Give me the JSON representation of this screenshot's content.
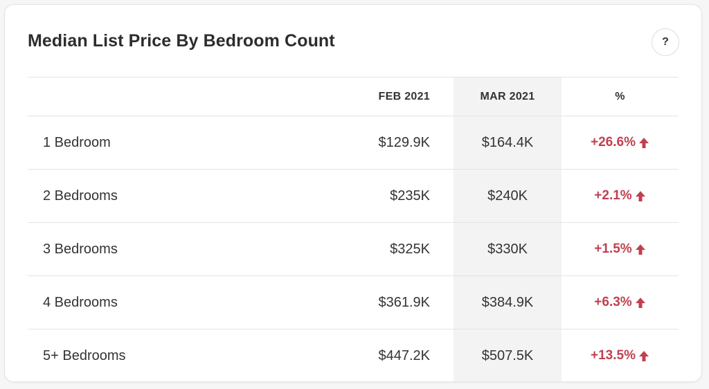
{
  "card": {
    "title": "Median List Price By Bedroom Count",
    "help_label": "?"
  },
  "table": {
    "headers": [
      "",
      "FEB 2021",
      "MAR 2021",
      "%"
    ],
    "rows": [
      {
        "label": "1 Bedroom",
        "feb": "$129.9K",
        "mar": "$164.4K",
        "pct": "+26.6%"
      },
      {
        "label": "2 Bedrooms",
        "feb": "$235K",
        "mar": "$240K",
        "pct": "+2.1%"
      },
      {
        "label": "3 Bedrooms",
        "feb": "$325K",
        "mar": "$330K",
        "pct": "+1.5%"
      },
      {
        "label": "4 Bedrooms",
        "feb": "$361.9K",
        "mar": "$384.9K",
        "pct": "+6.3%"
      },
      {
        "label": "5+ Bedrooms",
        "feb": "$447.2K",
        "mar": "$507.5K",
        "pct": "+13.5%"
      }
    ]
  },
  "colors": {
    "increase": "#c0404f",
    "highlight_column": "#f3f3f3"
  },
  "icons": {
    "trend": "up-arrow-icon",
    "help": "question-icon"
  }
}
